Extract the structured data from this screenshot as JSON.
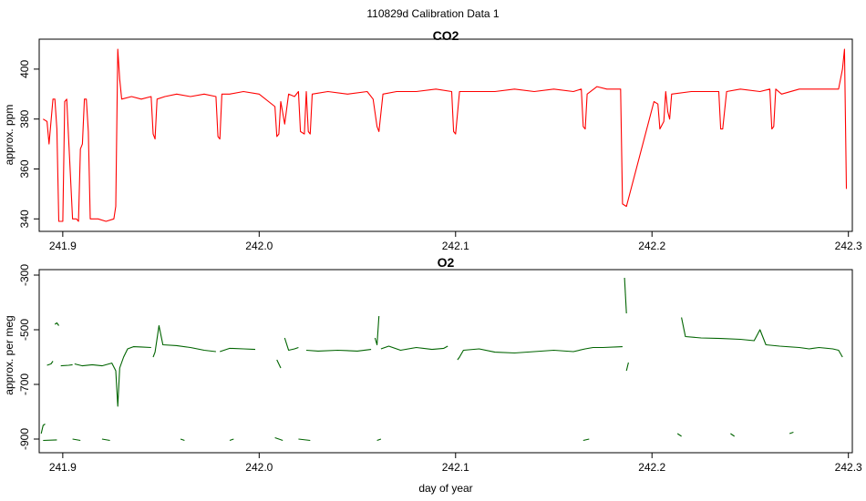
{
  "figure": {
    "title": "110829d   Calibration Data 1"
  },
  "chart_data": [
    {
      "type": "line",
      "title": "CO2",
      "xlabel": "",
      "ylabel": "approx. ppm",
      "xlim": [
        241.888,
        242.302
      ],
      "ylim": [
        335,
        412
      ],
      "xticks": [
        241.9,
        242.0,
        242.1,
        242.2,
        242.3
      ],
      "xtick_labels": [
        "241.9",
        "242.0",
        "242.1",
        "242.2",
        "242.3"
      ],
      "yticks": [
        340,
        360,
        380,
        400
      ],
      "ytick_labels": [
        "340",
        "360",
        "380",
        "400"
      ],
      "series": [
        {
          "color": "#ff0000",
          "points": [
            [
              241.89,
              380
            ],
            [
              241.892,
              379
            ],
            [
              241.893,
              370
            ],
            [
              241.895,
              388
            ],
            [
              241.896,
              388
            ],
            [
              241.897,
              376
            ],
            [
              241.898,
              339
            ],
            [
              241.9,
              339
            ],
            [
              241.901,
              387
            ],
            [
              241.902,
              388
            ],
            [
              241.903,
              372
            ],
            [
              241.905,
              340
            ],
            [
              241.907,
              340
            ],
            [
              241.908,
              339
            ],
            [
              241.909,
              368
            ],
            [
              241.91,
              370
            ],
            [
              241.911,
              388
            ],
            [
              241.912,
              388
            ],
            [
              241.913,
              375
            ],
            [
              241.914,
              340
            ],
            [
              241.918,
              340
            ],
            [
              241.922,
              339
            ],
            [
              241.926,
              340
            ],
            [
              241.927,
              345
            ],
            [
              241.928,
              408
            ],
            [
              241.929,
              396
            ],
            [
              241.93,
              388
            ],
            [
              241.935,
              389
            ],
            [
              241.94,
              388
            ],
            [
              241.945,
              389
            ],
            [
              241.946,
              374
            ],
            [
              241.947,
              372
            ],
            [
              241.948,
              388
            ],
            [
              241.952,
              389
            ],
            [
              241.958,
              390
            ],
            [
              241.965,
              389
            ],
            [
              241.972,
              390
            ],
            [
              241.978,
              389
            ],
            [
              241.979,
              373
            ],
            [
              241.98,
              372
            ],
            [
              241.981,
              390
            ],
            [
              241.985,
              390
            ],
            [
              241.992,
              391
            ],
            [
              242.0,
              390
            ],
            [
              242.008,
              385
            ],
            [
              242.009,
              373
            ],
            [
              242.01,
              374
            ],
            [
              242.011,
              387
            ],
            [
              242.013,
              378
            ],
            [
              242.015,
              390
            ],
            [
              242.018,
              389
            ],
            [
              242.02,
              391
            ],
            [
              242.021,
              375
            ],
            [
              242.023,
              374
            ],
            [
              242.024,
              391
            ],
            [
              242.025,
              375
            ],
            [
              242.026,
              374
            ],
            [
              242.027,
              390
            ],
            [
              242.035,
              391
            ],
            [
              242.045,
              390
            ],
            [
              242.055,
              391
            ],
            [
              242.058,
              388
            ],
            [
              242.06,
              377
            ],
            [
              242.061,
              375
            ],
            [
              242.063,
              390
            ],
            [
              242.07,
              391
            ],
            [
              242.08,
              391
            ],
            [
              242.09,
              392
            ],
            [
              242.098,
              391
            ],
            [
              242.099,
              375
            ],
            [
              242.1,
              374
            ],
            [
              242.102,
              391
            ],
            [
              242.11,
              391
            ],
            [
              242.12,
              391
            ],
            [
              242.13,
              392
            ],
            [
              242.14,
              391
            ],
            [
              242.15,
              392
            ],
            [
              242.16,
              391
            ],
            [
              242.164,
              392
            ],
            [
              242.165,
              377
            ],
            [
              242.166,
              376
            ],
            [
              242.167,
              390
            ],
            [
              242.172,
              393
            ],
            [
              242.177,
              392
            ],
            [
              242.184,
              392
            ],
            [
              242.185,
              346
            ],
            [
              242.187,
              345
            ],
            [
              242.201,
              387
            ],
            [
              242.203,
              386
            ],
            [
              242.204,
              376
            ],
            [
              242.206,
              379
            ],
            [
              242.207,
              391
            ],
            [
              242.208,
              383
            ],
            [
              242.209,
              380
            ],
            [
              242.21,
              390
            ],
            [
              242.22,
              391
            ],
            [
              242.23,
              391
            ],
            [
              242.234,
              391
            ],
            [
              242.235,
              376
            ],
            [
              242.236,
              376
            ],
            [
              242.238,
              391
            ],
            [
              242.245,
              392
            ],
            [
              242.255,
              391
            ],
            [
              242.26,
              392
            ],
            [
              242.261,
              376
            ],
            [
              242.262,
              377
            ],
            [
              242.263,
              392
            ],
            [
              242.266,
              390
            ],
            [
              242.275,
              392
            ],
            [
              242.285,
              392
            ],
            [
              242.295,
              392
            ],
            [
              242.297,
              400
            ],
            [
              242.298,
              408
            ],
            [
              242.299,
              352
            ]
          ]
        }
      ]
    },
    {
      "type": "line",
      "title": "O2",
      "xlabel": "day of year",
      "ylabel": "approx. per meg",
      "xlim": [
        241.888,
        242.302
      ],
      "ylim": [
        -950,
        -280
      ],
      "xticks": [
        241.9,
        242.0,
        242.1,
        242.2,
        242.3
      ],
      "xtick_labels": [
        "241.9",
        "242.0",
        "242.1",
        "242.2",
        "242.3"
      ],
      "yticks": [
        -300,
        -500,
        -700,
        -900
      ],
      "ytick_labels": [
        "-300",
        "-500",
        "-700",
        "-900"
      ],
      "series": [
        {
          "color": "#006400",
          "segments": [
            [
              [
                241.889,
                -880
              ],
              [
                241.89,
                -850
              ],
              [
                241.891,
                -845
              ]
            ],
            [
              [
                241.892,
                -630
              ],
              [
                241.894,
                -625
              ],
              [
                241.895,
                -615
              ]
            ],
            [
              [
                241.896,
                -480
              ],
              [
                241.897,
                -475
              ],
              [
                241.898,
                -485
              ]
            ],
            [
              [
                241.899,
                -632
              ],
              [
                241.903,
                -630
              ],
              [
                241.905,
                -628
              ]
            ],
            [
              [
                241.906,
                -625
              ],
              [
                241.91,
                -632
              ],
              [
                241.915,
                -628
              ],
              [
                241.92,
                -632
              ],
              [
                241.925,
                -622
              ],
              [
                241.927,
                -650
              ],
              [
                241.928,
                -780
              ],
              [
                241.929,
                -640
              ],
              [
                241.931,
                -600
              ],
              [
                241.933,
                -570
              ],
              [
                241.936,
                -562
              ],
              [
                241.94,
                -563
              ],
              [
                241.945,
                -565
              ]
            ],
            [
              [
                241.946,
                -600
              ],
              [
                241.947,
                -582
              ],
              [
                241.949,
                -485
              ],
              [
                241.951,
                -555
              ],
              [
                241.958,
                -558
              ],
              [
                241.965,
                -565
              ],
              [
                241.972,
                -575
              ],
              [
                241.978,
                -580
              ]
            ],
            [
              [
                241.98,
                -580
              ],
              [
                241.985,
                -568
              ],
              [
                241.992,
                -570
              ],
              [
                241.998,
                -572
              ]
            ],
            [
              [
                242.009,
                -610
              ],
              [
                242.011,
                -640
              ]
            ],
            [
              [
                242.013,
                -530
              ],
              [
                242.015,
                -575
              ],
              [
                242.018,
                -570
              ],
              [
                242.02,
                -565
              ]
            ],
            [
              [
                242.024,
                -575
              ],
              [
                242.03,
                -578
              ],
              [
                242.04,
                -575
              ],
              [
                242.05,
                -578
              ],
              [
                242.057,
                -572
              ]
            ],
            [
              [
                242.059,
                -530
              ],
              [
                242.06,
                -555
              ],
              [
                242.061,
                -450
              ]
            ],
            [
              [
                242.062,
                -570
              ],
              [
                242.066,
                -560
              ],
              [
                242.072,
                -575
              ],
              [
                242.08,
                -565
              ],
              [
                242.088,
                -572
              ],
              [
                242.094,
                -568
              ],
              [
                242.096,
                -560
              ]
            ],
            [
              [
                242.101,
                -610
              ],
              [
                242.102,
                -600
              ],
              [
                242.104,
                -575
              ],
              [
                242.112,
                -570
              ],
              [
                242.12,
                -582
              ],
              [
                242.13,
                -585
              ],
              [
                242.14,
                -580
              ],
              [
                242.15,
                -575
              ],
              [
                242.16,
                -580
              ],
              [
                242.166,
                -570
              ],
              [
                242.17,
                -565
              ],
              [
                242.175,
                -565
              ],
              [
                242.185,
                -562
              ]
            ],
            [
              [
                242.186,
                -310
              ],
              [
                242.187,
                -440
              ]
            ],
            [
              [
                242.187,
                -650
              ],
              [
                242.188,
                -620
              ]
            ],
            [
              [
                242.215,
                -455
              ],
              [
                242.217,
                -525
              ],
              [
                242.225,
                -530
              ],
              [
                242.235,
                -532
              ],
              [
                242.245,
                -535
              ],
              [
                242.252,
                -540
              ],
              [
                242.255,
                -500
              ],
              [
                242.258,
                -555
              ],
              [
                242.265,
                -560
              ],
              [
                242.275,
                -565
              ],
              [
                242.28,
                -570
              ],
              [
                242.285,
                -565
              ],
              [
                242.292,
                -570
              ],
              [
                242.295,
                -575
              ],
              [
                242.297,
                -600
              ]
            ],
            [
              [
                241.89,
                -905
              ],
              [
                241.897,
                -903
              ]
            ],
            [
              [
                241.905,
                -900
              ],
              [
                241.909,
                -905
              ]
            ],
            [
              [
                241.92,
                -900
              ],
              [
                241.924,
                -905
              ]
            ],
            [
              [
                241.96,
                -900
              ],
              [
                241.962,
                -905
              ]
            ],
            [
              [
                241.985,
                -905
              ],
              [
                241.987,
                -900
              ]
            ],
            [
              [
                242.008,
                -895
              ],
              [
                242.012,
                -905
              ]
            ],
            [
              [
                242.02,
                -900
              ],
              [
                242.026,
                -905
              ]
            ],
            [
              [
                242.06,
                -905
              ],
              [
                242.062,
                -900
              ]
            ],
            [
              [
                242.165,
                -905
              ],
              [
                242.168,
                -900
              ]
            ],
            [
              [
                242.213,
                -880
              ],
              [
                242.215,
                -890
              ]
            ],
            [
              [
                242.24,
                -880
              ],
              [
                242.242,
                -890
              ]
            ],
            [
              [
                242.27,
                -880
              ],
              [
                242.272,
                -875
              ]
            ]
          ]
        }
      ]
    }
  ]
}
